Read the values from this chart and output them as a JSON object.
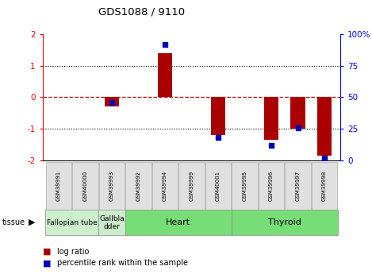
{
  "title": "GDS1088 / 9110",
  "samples": [
    "GSM39991",
    "GSM40000",
    "GSM39993",
    "GSM39992",
    "GSM39994",
    "GSM39999",
    "GSM40001",
    "GSM39995",
    "GSM39996",
    "GSM39997",
    "GSM39998"
  ],
  "log_ratio": [
    0.0,
    0.0,
    -0.3,
    0.0,
    1.4,
    0.0,
    -1.2,
    0.0,
    -1.35,
    -1.0,
    -1.85
  ],
  "percentile_rank": [
    null,
    null,
    46,
    null,
    92,
    null,
    18,
    null,
    12,
    26,
    2
  ],
  "ylim_left": [
    -2,
    2
  ],
  "ylim_right": [
    0,
    100
  ],
  "yticks_left": [
    -2,
    -1,
    0,
    1,
    2
  ],
  "yticks_right": [
    0,
    25,
    50,
    75,
    100
  ],
  "ytick_labels_right": [
    "0",
    "25",
    "50",
    "75",
    "100%"
  ],
  "bar_color": "#AA0000",
  "rank_color": "#0000BB",
  "zero_line_color": "#CC0000",
  "bg_color": "#ffffff",
  "tissue_defs": [
    {
      "name": "Fallopian tube",
      "start": 0,
      "end": 2,
      "color": "#ccf0cc",
      "fontsize": 6.5
    },
    {
      "name": "Gallbla\ndder",
      "start": 2,
      "end": 3,
      "color": "#ccedcc",
      "fontsize": 6.5
    },
    {
      "name": "Heart",
      "start": 3,
      "end": 7,
      "color": "#77dd77",
      "fontsize": 8
    },
    {
      "name": "Thyroid",
      "start": 7,
      "end": 11,
      "color": "#77dd77",
      "fontsize": 8
    }
  ],
  "legend_items": [
    {
      "label": "log ratio",
      "color": "#AA0000"
    },
    {
      "label": "percentile rank within the sample",
      "color": "#0000BB"
    }
  ]
}
